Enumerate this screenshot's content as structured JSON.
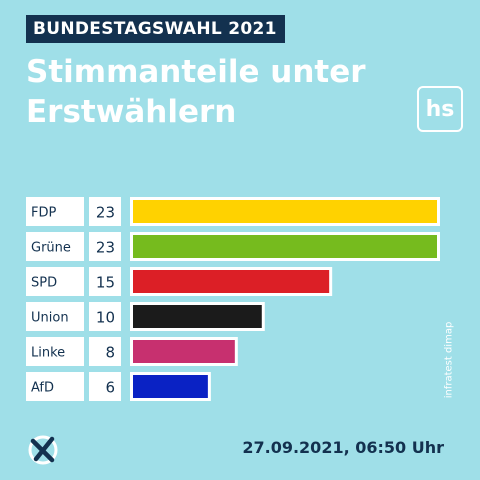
{
  "header": {
    "kicker": "BUNDESTAGSWAHL 2021",
    "title": "Stimmanteile unter Erstwählern",
    "logo": "hs"
  },
  "source": "infratest dimap",
  "timestamp": "27.09.2021, 06:50 Uhr",
  "icons": {
    "vote": "ballot-check-icon"
  },
  "chart_data": {
    "type": "bar",
    "orientation": "horizontal",
    "categories": [
      "FDP",
      "Grüne",
      "SPD",
      "Union",
      "Linke",
      "AfD"
    ],
    "values": [
      23,
      23,
      15,
      10,
      8,
      6
    ],
    "colors": [
      "#ffd200",
      "#76bb1e",
      "#dc1f26",
      "#1b1b1b",
      "#c7306f",
      "#0a22c4"
    ],
    "bar_outline": "#ffffff",
    "xlim": [
      0,
      23
    ],
    "grid": false
  }
}
